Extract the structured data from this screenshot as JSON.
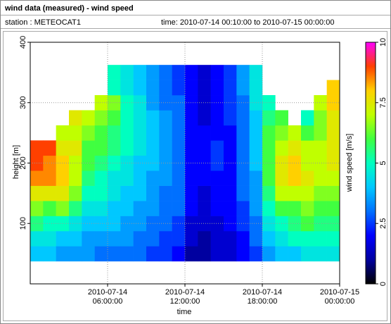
{
  "header": {
    "title": "wind data (measured) - wind speed",
    "station": "station : METEOCAT1",
    "period": "time: 2010-07-14 00:10:00 to 2010-07-15 00:00:00"
  },
  "chart_data": {
    "type": "heatmap",
    "x_label": "time",
    "y_label": "height [m]",
    "colorbar_label": "wind speed [m/s]",
    "x": [
      "2010-07-14 00:30:00",
      "2010-07-14 01:30:00",
      "2010-07-14 02:30:00",
      "2010-07-14 03:30:00",
      "2010-07-14 04:30:00",
      "2010-07-14 05:30:00",
      "2010-07-14 06:30:00",
      "2010-07-14 07:30:00",
      "2010-07-14 08:30:00",
      "2010-07-14 09:30:00",
      "2010-07-14 10:30:00",
      "2010-07-14 11:30:00",
      "2010-07-14 12:30:00",
      "2010-07-14 13:30:00",
      "2010-07-14 14:30:00",
      "2010-07-14 15:30:00",
      "2010-07-14 16:30:00",
      "2010-07-14 17:30:00",
      "2010-07-14 18:30:00",
      "2010-07-14 19:30:00",
      "2010-07-14 20:30:00",
      "2010-07-14 21:30:00",
      "2010-07-14 22:30:00",
      "2010-07-14 23:30:00"
    ],
    "y": [
      50,
      75,
      100,
      125,
      150,
      175,
      200,
      225,
      250,
      275,
      300,
      325,
      350
    ],
    "values": [
      [
        4,
        4.5,
        5.5,
        6.5,
        7.5,
        8.5,
        9,
        9,
        null,
        null,
        null,
        null,
        null
      ],
      [
        4,
        4.5,
        5,
        6,
        7.5,
        8.5,
        8.5,
        9,
        null,
        null,
        null,
        null,
        null
      ],
      [
        3.5,
        4,
        5,
        6.5,
        7.5,
        8,
        8,
        7.5,
        7,
        null,
        null,
        null,
        null
      ],
      [
        3.5,
        4,
        4.5,
        5.5,
        6.5,
        7,
        7,
        7.5,
        7,
        7.5,
        null,
        null,
        null
      ],
      [
        3.5,
        3.5,
        4,
        4.5,
        5,
        5.5,
        6,
        6,
        6.5,
        7,
        null,
        null,
        null
      ],
      [
        3,
        3.5,
        4,
        4.5,
        5,
        5,
        5.5,
        6,
        6,
        6.5,
        7,
        null,
        null
      ],
      [
        3,
        3.5,
        4,
        4,
        4.5,
        4.5,
        5,
        5.5,
        5.5,
        6,
        6.5,
        5,
        5
      ],
      [
        3,
        3.5,
        3.5,
        4,
        4,
        4.5,
        4.5,
        5,
        5,
        5,
        5,
        4.5,
        4.5
      ],
      [
        3,
        3,
        3.5,
        3.5,
        4,
        4,
        4,
        4.5,
        4.5,
        4.5,
        4.5,
        4,
        4
      ],
      [
        2.5,
        3,
        3,
        3.5,
        3.5,
        3.5,
        4,
        4,
        4,
        4,
        3.5,
        3.5,
        3.5
      ],
      [
        2.5,
        2.5,
        3,
        3,
        3,
        3.5,
        3.5,
        3.5,
        3.5,
        3.5,
        3,
        3,
        3
      ],
      [
        2,
        2.5,
        2.5,
        3,
        3,
        3,
        3,
        3,
        3,
        3,
        3,
        2.5,
        2.5
      ],
      [
        1,
        1.5,
        1.5,
        2,
        2,
        2,
        2,
        2,
        2,
        2,
        2,
        2,
        2
      ],
      [
        1,
        1,
        1.5,
        1.5,
        1.5,
        2,
        2,
        2,
        2,
        1.5,
        1.5,
        1.5,
        1.5
      ],
      [
        1.5,
        1.5,
        1.5,
        2,
        2,
        2,
        2.5,
        2.5,
        2,
        2,
        2,
        2,
        2
      ],
      [
        1.5,
        1.5,
        2,
        2,
        2,
        2,
        2,
        2,
        2,
        2.5,
        2.5,
        2.5,
        2.5
      ],
      [
        2,
        2,
        2.5,
        2.5,
        3,
        3,
        3,
        3,
        3,
        3,
        3,
        3.5,
        3.5
      ],
      [
        2.5,
        3,
        3,
        3.5,
        3.5,
        3.5,
        4,
        4,
        4,
        4,
        4.5,
        4.5,
        4.5
      ],
      [
        3.5,
        4,
        4.5,
        5,
        5.5,
        6,
        6,
        6,
        6,
        5.5,
        5,
        null,
        null
      ],
      [
        4,
        4.5,
        5,
        6,
        7,
        7.5,
        7.5,
        7,
        6.5,
        6,
        null,
        null,
        null
      ],
      [
        4,
        5,
        5.5,
        6,
        7,
        8,
        8,
        7.5,
        7,
        null,
        null,
        null,
        null
      ],
      [
        4.5,
        5,
        6,
        6.5,
        7,
        7.5,
        7,
        7,
        6,
        5,
        null,
        null,
        null
      ],
      [
        4.5,
        5,
        5.5,
        6,
        6.5,
        7,
        7,
        7,
        6.5,
        6.5,
        7,
        null,
        null
      ],
      [
        4.5,
        5,
        5.5,
        6,
        6.5,
        7,
        7.5,
        7.5,
        7.5,
        7.5,
        8,
        8,
        null
      ]
    ],
    "xlim": [
      "2010-07-14 00:00:00",
      "2010-07-15 00:00:00"
    ],
    "xticks": [
      "2010-07-14 06:00:00",
      "2010-07-14 12:00:00",
      "2010-07-14 18:00:00",
      "2010-07-15 00:00:00"
    ],
    "ylim": [
      0,
      400
    ],
    "yticks": [
      100,
      200,
      300,
      400
    ],
    "clim": [
      0,
      10
    ],
    "cticks": [
      0,
      2.5,
      5,
      7.5,
      10
    ],
    "colormap": [
      "#000000",
      "#0000a0",
      "#0000ff",
      "#0070ff",
      "#00c8ff",
      "#00ffc0",
      "#40ff40",
      "#c0ff00",
      "#ffd000",
      "#ff4000",
      "#ff00ff"
    ],
    "grid": true
  }
}
